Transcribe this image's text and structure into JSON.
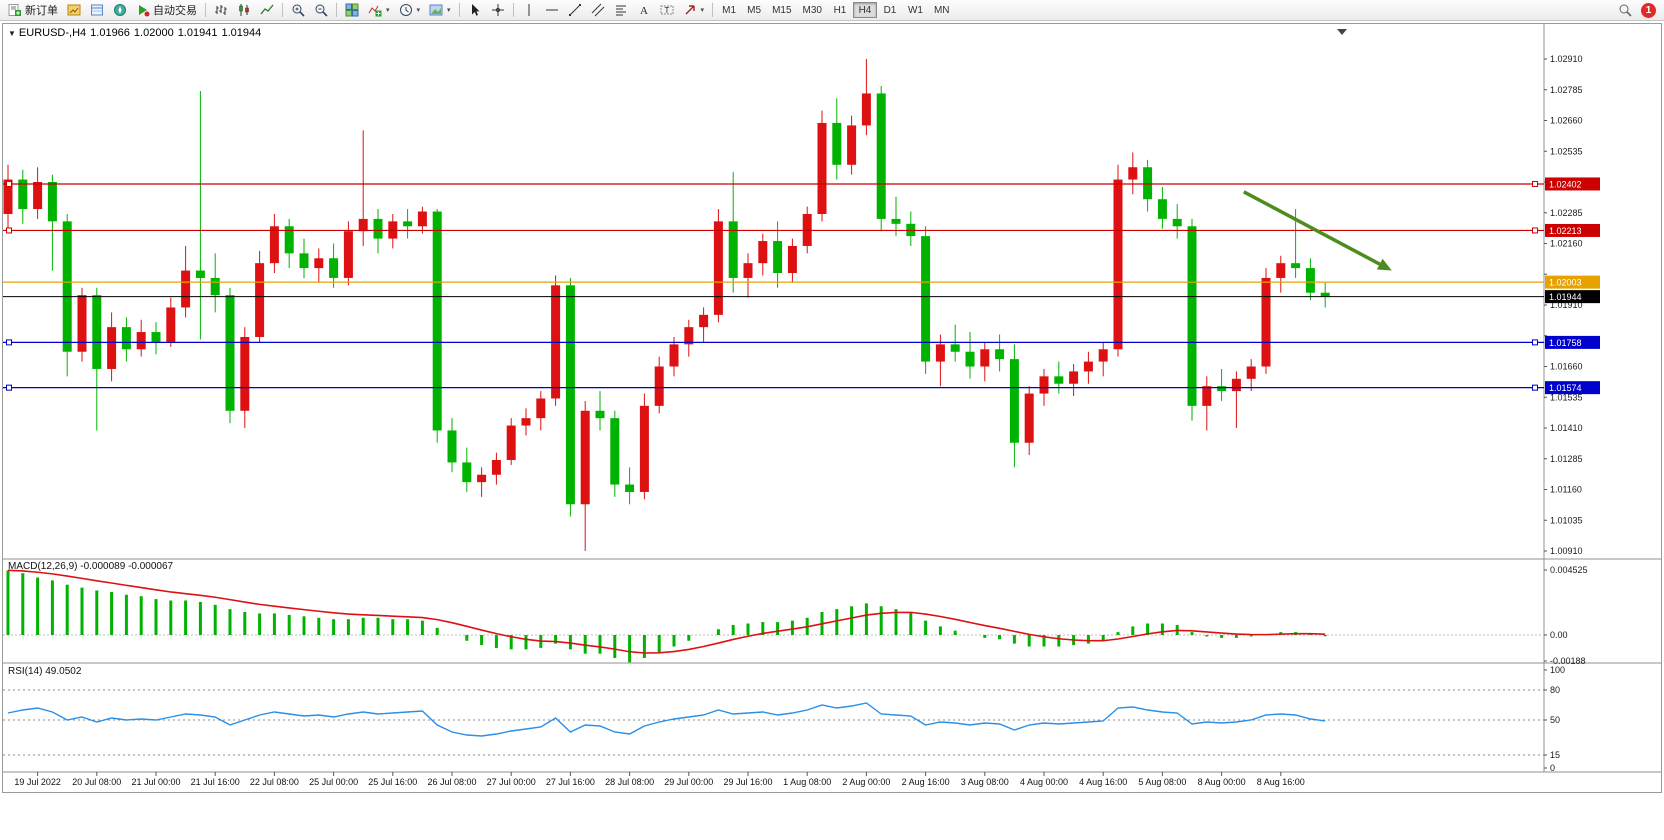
{
  "toolbar": {
    "new_order": "新订单",
    "auto_trading": "自动交易",
    "timeframes": [
      "M1",
      "M5",
      "M15",
      "M30",
      "H1",
      "H4",
      "D1",
      "W1",
      "MN"
    ],
    "active_timeframe": "H4",
    "notification_count": "1"
  },
  "chart": {
    "symbol_period": "EURUSD-,H4",
    "open": "1.01966",
    "high": "1.02000",
    "low": "1.01941",
    "close": "1.01944"
  },
  "chart_data": {
    "type": "candlestick",
    "symbol": "EURUSD-",
    "period": "H4",
    "colors": {
      "up": "#dd1111",
      "down": "#00b300",
      "macd_hist": "#00b300",
      "macd_signal": "#dd1111",
      "rsi_line": "#2a8fe8",
      "background": "#ffffff"
    },
    "price_axis": {
      "max": 1.0291,
      "min": 1.0091,
      "step": 0.00125
    },
    "candles": [
      [
        1.0228,
        1.0248,
        1.0222,
        1.0242
      ],
      [
        1.0242,
        1.0246,
        1.0224,
        1.023
      ],
      [
        1.023,
        1.0247,
        1.0226,
        1.0241
      ],
      [
        1.0241,
        1.0244,
        1.0205,
        1.0225
      ],
      [
        1.0225,
        1.0228,
        1.0162,
        1.0172
      ],
      [
        1.0172,
        1.0198,
        1.0168,
        1.0195
      ],
      [
        1.0195,
        1.0198,
        1.014,
        1.0165
      ],
      [
        1.0165,
        1.0188,
        1.016,
        1.0182
      ],
      [
        1.0182,
        1.0186,
        1.0168,
        1.0173
      ],
      [
        1.0173,
        1.0185,
        1.017,
        1.018
      ],
      [
        1.018,
        1.0184,
        1.0171,
        1.0176
      ],
      [
        1.0176,
        1.0194,
        1.0174,
        1.019
      ],
      [
        1.019,
        1.0215,
        1.0186,
        1.0205
      ],
      [
        1.0205,
        1.0278,
        1.0177,
        1.0202
      ],
      [
        1.0202,
        1.0212,
        1.0188,
        1.0195
      ],
      [
        1.0195,
        1.0198,
        1.0143,
        1.0148
      ],
      [
        1.0148,
        1.0182,
        1.0141,
        1.0178
      ],
      [
        1.0178,
        1.0213,
        1.0176,
        1.0208
      ],
      [
        1.0208,
        1.0228,
        1.0204,
        1.0223
      ],
      [
        1.0223,
        1.0226,
        1.0206,
        1.0212
      ],
      [
        1.0212,
        1.0218,
        1.0202,
        1.0206
      ],
      [
        1.0206,
        1.0214,
        1.02,
        1.021
      ],
      [
        1.021,
        1.0216,
        1.0198,
        1.0202
      ],
      [
        1.0202,
        1.0225,
        1.0199,
        1.0221
      ],
      [
        1.0221,
        1.0262,
        1.0215,
        1.0226
      ],
      [
        1.0226,
        1.023,
        1.0212,
        1.0218
      ],
      [
        1.0218,
        1.0228,
        1.0214,
        1.0225
      ],
      [
        1.0225,
        1.023,
        1.0218,
        1.0223
      ],
      [
        1.0223,
        1.0231,
        1.022,
        1.0229
      ],
      [
        1.0229,
        1.023,
        1.0135,
        1.014
      ],
      [
        1.014,
        1.0145,
        1.0123,
        1.0127
      ],
      [
        1.0127,
        1.0133,
        1.0115,
        1.0119
      ],
      [
        1.0119,
        1.0125,
        1.0113,
        1.0122
      ],
      [
        1.0122,
        1.0131,
        1.0118,
        1.0128
      ],
      [
        1.0128,
        1.0145,
        1.0126,
        1.0142
      ],
      [
        1.0142,
        1.0149,
        1.0138,
        1.0145
      ],
      [
        1.0145,
        1.0156,
        1.014,
        1.0153
      ],
      [
        1.0153,
        1.0203,
        1.015,
        1.0199
      ],
      [
        1.0199,
        1.0202,
        1.0105,
        1.011
      ],
      [
        1.011,
        1.0152,
        1.0091,
        1.0148
      ],
      [
        1.0148,
        1.0156,
        1.014,
        1.0145
      ],
      [
        1.0145,
        1.0148,
        1.0113,
        1.0118
      ],
      [
        1.0118,
        1.0125,
        1.011,
        1.0115
      ],
      [
        1.0115,
        1.0155,
        1.0112,
        1.015
      ],
      [
        1.015,
        1.017,
        1.0147,
        1.0166
      ],
      [
        1.0166,
        1.0178,
        1.0162,
        1.0175
      ],
      [
        1.0175,
        1.0185,
        1.017,
        1.0182
      ],
      [
        1.0182,
        1.019,
        1.0176,
        1.0187
      ],
      [
        1.0187,
        1.023,
        1.0184,
        1.0225
      ],
      [
        1.0225,
        1.0245,
        1.0196,
        1.0202
      ],
      [
        1.0202,
        1.0212,
        1.0194,
        1.0208
      ],
      [
        1.0208,
        1.022,
        1.0203,
        1.0217
      ],
      [
        1.0217,
        1.0225,
        1.0198,
        1.0204
      ],
      [
        1.0204,
        1.0218,
        1.02,
        1.0215
      ],
      [
        1.0215,
        1.0231,
        1.0212,
        1.0228
      ],
      [
        1.0228,
        1.027,
        1.0225,
        1.0265
      ],
      [
        1.0265,
        1.0275,
        1.0242,
        1.0248
      ],
      [
        1.0248,
        1.0268,
        1.0244,
        1.0264
      ],
      [
        1.0264,
        1.0291,
        1.026,
        1.0277
      ],
      [
        1.0277,
        1.028,
        1.0221,
        1.0226
      ],
      [
        1.0226,
        1.0235,
        1.0219,
        1.0224
      ],
      [
        1.0224,
        1.0229,
        1.0215,
        1.0219
      ],
      [
        1.0219,
        1.0223,
        1.0163,
        1.0168
      ],
      [
        1.0168,
        1.0179,
        1.0158,
        1.0175
      ],
      [
        1.0175,
        1.0183,
        1.0168,
        1.0172
      ],
      [
        1.0172,
        1.018,
        1.0161,
        1.0166
      ],
      [
        1.0166,
        1.0176,
        1.016,
        1.0173
      ],
      [
        1.0173,
        1.0179,
        1.0164,
        1.0169
      ],
      [
        1.0169,
        1.0175,
        1.0125,
        1.0135
      ],
      [
        1.0135,
        1.0158,
        1.013,
        1.0155
      ],
      [
        1.0155,
        1.0165,
        1.015,
        1.0162
      ],
      [
        1.0162,
        1.0168,
        1.0155,
        1.0159
      ],
      [
        1.0159,
        1.0167,
        1.0154,
        1.0164
      ],
      [
        1.0164,
        1.0172,
        1.0159,
        1.0168
      ],
      [
        1.0168,
        1.0176,
        1.0162,
        1.0173
      ],
      [
        1.0173,
        1.0248,
        1.017,
        1.0242
      ],
      [
        1.0242,
        1.0253,
        1.0236,
        1.0247
      ],
      [
        1.0247,
        1.025,
        1.0229,
        1.0234
      ],
      [
        1.0234,
        1.0239,
        1.0222,
        1.0226
      ],
      [
        1.0226,
        1.0232,
        1.0218,
        1.0223
      ],
      [
        1.0223,
        1.0226,
        1.0144,
        1.015
      ],
      [
        1.015,
        1.0162,
        1.014,
        1.0158
      ],
      [
        1.0158,
        1.0165,
        1.0152,
        1.0156
      ],
      [
        1.0156,
        1.0164,
        1.0141,
        1.0161
      ],
      [
        1.0161,
        1.0169,
        1.0156,
        1.0166
      ],
      [
        1.0166,
        1.0206,
        1.0163,
        1.0202
      ],
      [
        1.0202,
        1.0211,
        1.0196,
        1.0208
      ],
      [
        1.0208,
        1.023,
        1.0202,
        1.0206
      ],
      [
        1.0206,
        1.021,
        1.0193,
        1.0196
      ],
      [
        1.0196,
        1.02,
        1.019,
        1.01944
      ]
    ],
    "time_labels": [
      "19 Jul 2022",
      "20 Jul 08:00",
      "21 Jul 00:00",
      "21 Jul 16:00",
      "22 Jul 08:00",
      "25 Jul 00:00",
      "25 Jul 16:00",
      "26 Jul 08:00",
      "27 Jul 00:00",
      "27 Jul 16:00",
      "28 Jul 08:00",
      "29 Jul 00:00",
      "29 Jul 16:00",
      "1 Aug 08:00",
      "2 Aug 00:00",
      "2 Aug 16:00",
      "3 Aug 08:00",
      "4 Aug 00:00",
      "4 Aug 16:00",
      "5 Aug 08:00",
      "8 Aug 00:00",
      "8 Aug 16:00"
    ],
    "first_label_bar": 2,
    "label_step_bars": 4,
    "hlines": [
      {
        "price": 1.02402,
        "label": "1.02402",
        "color": "#cc0000",
        "handles": true
      },
      {
        "price": 1.02213,
        "label": "1.02213",
        "color": "#cc0000",
        "handles": true
      },
      {
        "price": 1.02003,
        "label": "1.02003",
        "color": "#e8a200",
        "handles": false
      },
      {
        "price": 1.01758,
        "label": "1.01758",
        "color": "#0000cc",
        "handles": true
      },
      {
        "price": 1.01574,
        "label": "1.01574",
        "color": "#0000cc",
        "handles": true
      }
    ],
    "bid_line": {
      "price": 1.01944,
      "label": "1.01944",
      "color": "#000000"
    },
    "trend_arrow": {
      "from_bar": 83.5,
      "from_price": 1.0237,
      "to_bar": 93.5,
      "to_price": 1.0205,
      "color": "#4e8c1e"
    },
    "macd": {
      "name": "MACD(12,26,9)",
      "value_text": "-0.000089 -0.000067",
      "axis": {
        "max": 0.004525,
        "min": -0.00188,
        "max_label": "0.004525",
        "zero_label": "0.00",
        "min_label": "-0.00188"
      },
      "histogram": [
        0.0045,
        0.0043,
        0.004,
        0.0038,
        0.0035,
        0.0033,
        0.0031,
        0.003,
        0.0028,
        0.0027,
        0.0025,
        0.0024,
        0.0024,
        0.0023,
        0.0021,
        0.0018,
        0.0016,
        0.0015,
        0.0015,
        0.0014,
        0.0013,
        0.0012,
        0.0011,
        0.0011,
        0.0012,
        0.0012,
        0.0011,
        0.0011,
        0.001,
        0.0005,
        0.0,
        -0.0004,
        -0.0007,
        -0.0009,
        -0.001,
        -0.001,
        -0.0009,
        -0.0006,
        -0.001,
        -0.0013,
        -0.0013,
        -0.0016,
        -0.0019,
        -0.0016,
        -0.0012,
        -0.0008,
        -0.0004,
        0.0,
        0.0004,
        0.0007,
        0.0008,
        0.0009,
        0.0009,
        0.001,
        0.0012,
        0.0016,
        0.0018,
        0.002,
        0.0022,
        0.002,
        0.0018,
        0.0016,
        0.001,
        0.0006,
        0.0003,
        0.0,
        -0.0002,
        -0.0003,
        -0.0006,
        -0.0008,
        -0.0008,
        -0.0008,
        -0.0007,
        -0.0006,
        -0.0004,
        0.0002,
        0.0006,
        0.0008,
        0.0008,
        0.0007,
        0.0002,
        -0.0001,
        -0.0002,
        -0.0002,
        -0.0001,
        0.0,
        0.0002,
        0.0002,
        0.0001,
        -8.9e-05
      ]
    },
    "rsi": {
      "name": "RSI(14)",
      "value_text": "49.0502",
      "levels": [
        80,
        50,
        15
      ],
      "axis_values": [
        100,
        80,
        50,
        15,
        0
      ],
      "axis_labels": [
        "100",
        "80",
        "50",
        "15",
        "0"
      ],
      "values": [
        57,
        60,
        62,
        58,
        50,
        53,
        48,
        52,
        50,
        51,
        50,
        53,
        56,
        55,
        53,
        45,
        50,
        55,
        58,
        56,
        54,
        55,
        53,
        56,
        58,
        56,
        57,
        58,
        59,
        45,
        38,
        35,
        34,
        36,
        39,
        41,
        43,
        52,
        38,
        45,
        44,
        38,
        36,
        44,
        48,
        51,
        53,
        55,
        60,
        56,
        57,
        58,
        55,
        57,
        60,
        65,
        62,
        64,
        67,
        56,
        55,
        54,
        45,
        48,
        47,
        45,
        47,
        46,
        40,
        45,
        47,
        46,
        47,
        48,
        49,
        62,
        63,
        60,
        58,
        57,
        46,
        48,
        47,
        48,
        50,
        55,
        56,
        55,
        51,
        49.05
      ]
    }
  }
}
